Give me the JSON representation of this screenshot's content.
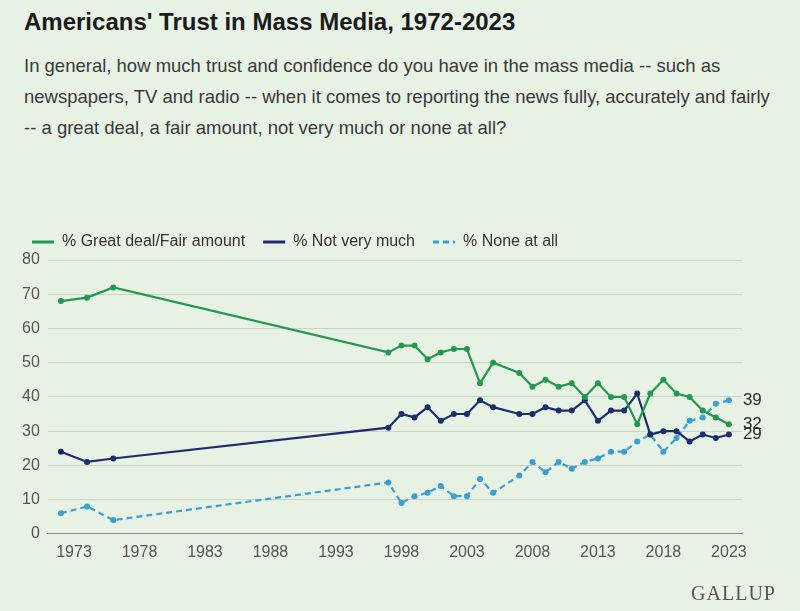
{
  "chart_data": {
    "type": "line",
    "title": "Americans' Trust in Mass Media, 1972-2023",
    "subtitle": "In general, how much trust and confidence do you have in the mass media -- such as newspapers, TV and radio -- when it comes to reporting the news fully, accurately and fairly -- a great deal, a fair amount, not very much or none at all?",
    "source": "GALLUP",
    "x": [
      1972,
      1974,
      1976,
      1997,
      1998,
      1999,
      2000,
      2001,
      2002,
      2003,
      2004,
      2005,
      2007,
      2008,
      2009,
      2010,
      2011,
      2012,
      2013,
      2014,
      2015,
      2016,
      2017,
      2018,
      2019,
      2020,
      2021,
      2022,
      2023
    ],
    "series": [
      {
        "name": "% Great deal/Fair amount",
        "color": "#23994f",
        "marker": "circle",
        "line_style": "solid",
        "values": [
          68,
          69,
          72,
          53,
          55,
          55,
          51,
          53,
          54,
          54,
          44,
          50,
          47,
          43,
          45,
          43,
          44,
          40,
          44,
          40,
          40,
          32,
          41,
          45,
          41,
          40,
          36,
          34,
          32
        ]
      },
      {
        "name": "% Not very much",
        "color": "#1c2d6e",
        "marker": "circle",
        "line_style": "solid",
        "values": [
          24,
          21,
          22,
          31,
          35,
          34,
          37,
          33,
          35,
          35,
          39,
          37,
          35,
          35,
          37,
          36,
          36,
          39,
          33,
          36,
          36,
          41,
          29,
          30,
          30,
          27,
          29,
          28,
          29
        ]
      },
      {
        "name": "% None at all",
        "color": "#3b9fd3",
        "marker": "circle",
        "line_style": "dashed",
        "values": [
          6,
          8,
          4,
          15,
          9,
          11,
          12,
          14,
          11,
          11,
          16,
          12,
          17,
          21,
          18,
          21,
          19,
          21,
          22,
          24,
          24,
          27,
          29,
          24,
          28,
          33,
          34,
          38,
          39
        ]
      }
    ],
    "annotations": [
      {
        "text": "39",
        "x": 2023,
        "y": 39
      },
      {
        "text": "32",
        "x": 2023,
        "y": 32
      },
      {
        "text": "29",
        "x": 2023,
        "y": 29
      }
    ],
    "xlim": [
      1971,
      2024
    ],
    "xticks": [
      1973,
      1978,
      1983,
      1988,
      1993,
      1998,
      2003,
      2008,
      2013,
      2018,
      2023
    ],
    "ylim": [
      0,
      80
    ],
    "yticks": [
      0,
      10,
      20,
      30,
      40,
      50,
      60,
      70,
      80
    ],
    "grid": "y",
    "legend": "top-left"
  }
}
